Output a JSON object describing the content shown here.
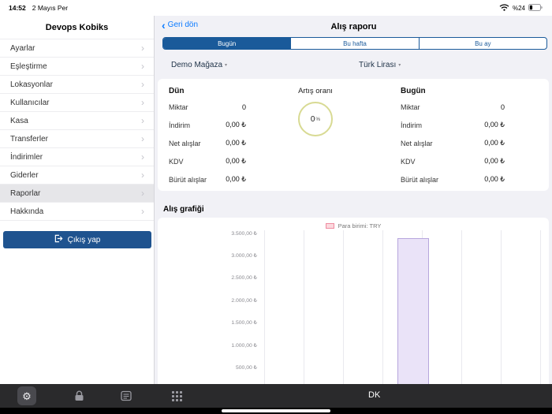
{
  "status_bar": {
    "time": "14:52",
    "date": "2 Mayıs Per",
    "battery_percent": "%24"
  },
  "sidebar": {
    "title": "Devops Kobiks",
    "items": [
      {
        "id": "ayarlar",
        "label": "Ayarlar",
        "selected": false
      },
      {
        "id": "eslestirme",
        "label": "Eşleştirme",
        "selected": false
      },
      {
        "id": "lokasyonlar",
        "label": "Lokasyonlar",
        "selected": false
      },
      {
        "id": "kullanicilar",
        "label": "Kullanıcılar",
        "selected": false
      },
      {
        "id": "kasa",
        "label": "Kasa",
        "selected": false
      },
      {
        "id": "transferler",
        "label": "Transferler",
        "selected": false
      },
      {
        "id": "indirimler",
        "label": "İndirimler",
        "selected": false
      },
      {
        "id": "giderler",
        "label": "Giderler",
        "selected": false
      },
      {
        "id": "raporlar",
        "label": "Raporlar",
        "selected": true
      },
      {
        "id": "hakkinda",
        "label": "Hakkında",
        "selected": false
      }
    ],
    "logout_label": "Çıkış yap"
  },
  "header": {
    "back_label": "Geri dön",
    "title": "Alış raporu"
  },
  "tabs": [
    {
      "id": "bugun",
      "label": "Bugün",
      "selected": true
    },
    {
      "id": "bu-hafta",
      "label": "Bu hafta",
      "selected": false
    },
    {
      "id": "bu-ay",
      "label": "Bu ay",
      "selected": false
    }
  ],
  "filters": {
    "store": "Demo Mağaza",
    "currency": "Türk Lirası"
  },
  "stats": {
    "yesterday": {
      "title": "Dün",
      "rows": [
        {
          "label": "Miktar",
          "value": "0"
        },
        {
          "label": "İndirim",
          "value": "0,00 ₺"
        },
        {
          "label": "Net alışlar",
          "value": "0,00 ₺"
        },
        {
          "label": "KDV",
          "value": "0,00 ₺"
        },
        {
          "label": "Bürüt alışlar",
          "value": "0,00 ₺"
        }
      ]
    },
    "growth": {
      "title": "Artış oranı",
      "value": "0",
      "unit": "%"
    },
    "today": {
      "title": "Bugün",
      "rows": [
        {
          "label": "Miktar",
          "value": "0"
        },
        {
          "label": "İndirim",
          "value": "0,00 ₺"
        },
        {
          "label": "Net alışlar",
          "value": "0,00 ₺"
        },
        {
          "label": "KDV",
          "value": "0,00 ₺"
        },
        {
          "label": "Bürüt alışlar",
          "value": "0,00 ₺"
        }
      ]
    }
  },
  "chart": {
    "section_title": "Alış grafiği"
  },
  "chart_data": {
    "type": "bar",
    "title": "Alış grafiği",
    "legend": [
      {
        "label": "Para birimi: TRY",
        "swatch_fill": "#fbd9de",
        "swatch_border": "#ef8ba0"
      }
    ],
    "legend_position": "top-center",
    "ylim": [
      0,
      3500
    ],
    "y_tick_values": [
      3500,
      3000,
      2500,
      2000,
      1500,
      1000,
      500
    ],
    "y_ticks": [
      "3.500,00 ₺",
      "3.000,00 ₺",
      "2.500,00 ₺",
      "2.000,00 ₺",
      "1.500,00 ₺",
      "1.000,00 ₺",
      "500,00 ₺"
    ],
    "grid": "vertical",
    "bars": [
      {
        "value": 3400,
        "x_fraction": 0.47,
        "fill": "#eae3f8",
        "border": "#b7a6dd"
      }
    ]
  },
  "dock": {
    "app_label": "DK",
    "icons": [
      "gear",
      "lock",
      "notes",
      "app-grid"
    ]
  },
  "colors": {
    "accent_blue": "#1a5a9a",
    "link_blue": "#0a7aff",
    "logout_navy": "#1f538f",
    "growth_ring": "#d8da93"
  }
}
